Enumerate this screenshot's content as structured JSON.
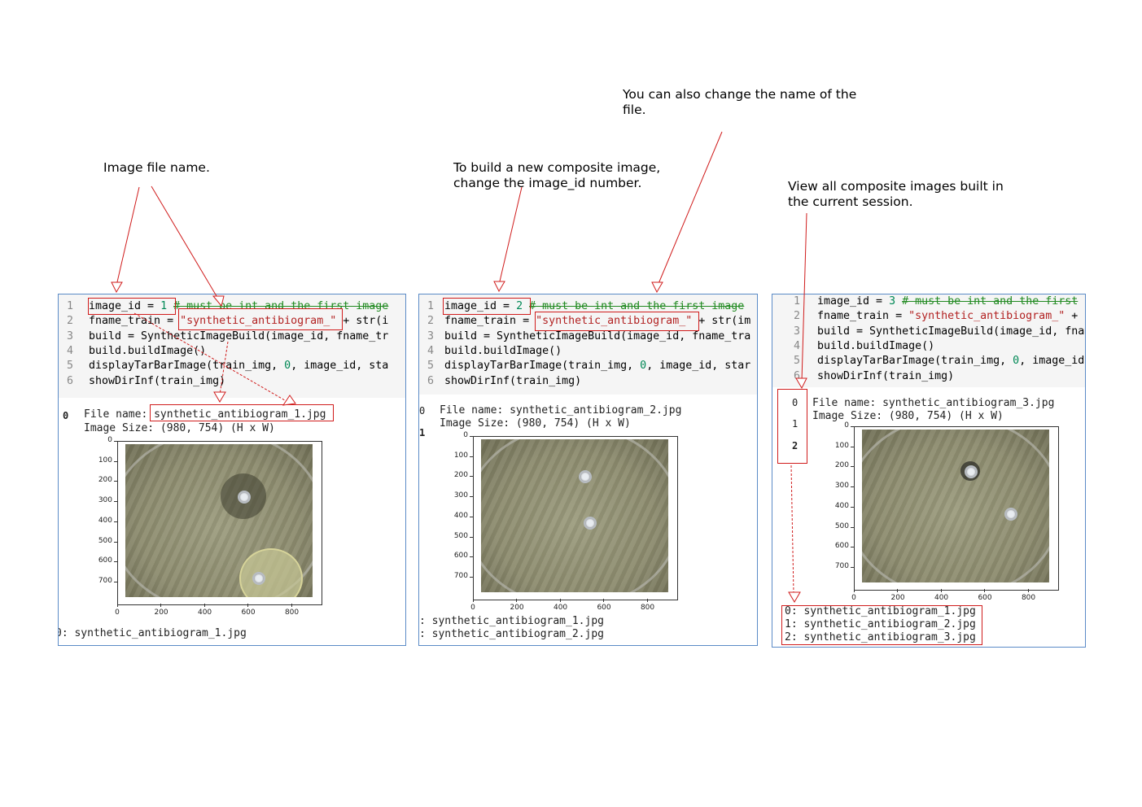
{
  "annotations": {
    "image_file_name": "Image file name.",
    "build_new": "To build a new composite image,\nchange the image_id number.",
    "change_name": "You can also change the name of the\nfile.",
    "view_all": "View all composite images built in\nthe current session."
  },
  "panels": [
    {
      "code": [
        {
          "n": "1",
          "parts": [
            {
              "t": "image_id = ",
              "c": ""
            },
            {
              "t": "1",
              "c": "num"
            },
            {
              "t": " ",
              "c": ""
            },
            {
              "t": "# must be int and the first image",
              "c": "cmt"
            }
          ]
        },
        {
          "n": "2",
          "parts": [
            {
              "t": "fname_train = ",
              "c": ""
            },
            {
              "t": "\"synthetic_antibiogram_\"",
              "c": "str"
            },
            {
              "t": " + str(i",
              "c": ""
            }
          ]
        },
        {
          "n": "3",
          "parts": [
            {
              "t": "build = SyntheticImageBuild(image_id, fname_tr",
              "c": ""
            }
          ]
        },
        {
          "n": "4",
          "parts": [
            {
              "t": "build.buildImage()",
              "c": ""
            }
          ]
        },
        {
          "n": "5",
          "parts": [
            {
              "t": "displayTarBarImage(train_img, ",
              "c": ""
            },
            {
              "t": "0",
              "c": "num"
            },
            {
              "t": ", image_id, sta",
              "c": ""
            }
          ]
        },
        {
          "n": "6",
          "parts": [
            {
              "t": "showDirInf(train_img)",
              "c": ""
            }
          ]
        }
      ],
      "prompt": "0",
      "file_line": "File name: synthetic_antibiogram_1.jpg",
      "size_line": "Image Size: (980, 754) (H x W)",
      "bottom_lines": [
        "0: synthetic_antibiogram_1.jpg"
      ]
    },
    {
      "code": [
        {
          "n": "1",
          "parts": [
            {
              "t": "image_id = ",
              "c": ""
            },
            {
              "t": "2",
              "c": "num"
            },
            {
              "t": " ",
              "c": ""
            },
            {
              "t": "# must be int and the first image",
              "c": "cmt"
            }
          ]
        },
        {
          "n": "2",
          "parts": [
            {
              "t": "fname_train = ",
              "c": ""
            },
            {
              "t": "\"synthetic_antibiogram_\"",
              "c": "str"
            },
            {
              "t": " + str(im",
              "c": ""
            }
          ]
        },
        {
          "n": "3",
          "parts": [
            {
              "t": "build = SyntheticImageBuild(image_id, fname_tra",
              "c": ""
            }
          ]
        },
        {
          "n": "4",
          "parts": [
            {
              "t": "build.buildImage()",
              "c": ""
            }
          ]
        },
        {
          "n": "5",
          "parts": [
            {
              "t": "displayTarBarImage(train_img, ",
              "c": ""
            },
            {
              "t": "0",
              "c": "num"
            },
            {
              "t": ", image_id, star",
              "c": ""
            }
          ]
        },
        {
          "n": "6",
          "parts": [
            {
              "t": "showDirInf(train_img)",
              "c": ""
            }
          ]
        }
      ],
      "prompt": "0",
      "prompt2": "1",
      "file_line": "File name: synthetic_antibiogram_2.jpg",
      "size_line": "Image Size: (980, 754) (H x W)",
      "bottom_lines": [
        ": synthetic_antibiogram_1.jpg",
        ": synthetic_antibiogram_2.jpg"
      ]
    },
    {
      "code": [
        {
          "n": "1",
          "parts": [
            {
              "t": "image_id = ",
              "c": ""
            },
            {
              "t": "3",
              "c": "num"
            },
            {
              "t": " ",
              "c": ""
            },
            {
              "t": "# must be int and the first",
              "c": "cmt"
            }
          ]
        },
        {
          "n": "2",
          "parts": [
            {
              "t": "fname_train = ",
              "c": ""
            },
            {
              "t": "\"synthetic_antibiogram_\"",
              "c": "str"
            },
            {
              "t": " + ",
              "c": ""
            }
          ]
        },
        {
          "n": "3",
          "parts": [
            {
              "t": "build = SyntheticImageBuild(image_id, fnam",
              "c": ""
            }
          ]
        },
        {
          "n": "4",
          "parts": [
            {
              "t": "build.buildImage()",
              "c": ""
            }
          ]
        },
        {
          "n": "5",
          "parts": [
            {
              "t": "displayTarBarImage(train_img, ",
              "c": ""
            },
            {
              "t": "0",
              "c": "num"
            },
            {
              "t": ", image_id",
              "c": ""
            }
          ]
        },
        {
          "n": "6",
          "parts": [
            {
              "t": "showDirInf(train_img)",
              "c": ""
            }
          ]
        }
      ],
      "prompts": [
        "0",
        "1",
        "2"
      ],
      "file_line": "File name: synthetic_antibiogram_3.jpg",
      "size_line": "Image Size: (980, 754) (H x W)",
      "bottom_lines": [
        "0: synthetic_antibiogram_1.jpg",
        "1: synthetic_antibiogram_2.jpg",
        "2: synthetic_antibiogram_3.jpg"
      ]
    }
  ],
  "axis": {
    "y_ticks": [
      "0",
      "100",
      "200",
      "300",
      "400",
      "500",
      "600",
      "700"
    ],
    "x_ticks": [
      "0",
      "200",
      "400",
      "600",
      "800"
    ]
  },
  "colors": {
    "highlight": "#d01c1c",
    "panel_border": "#5b8bc7"
  }
}
